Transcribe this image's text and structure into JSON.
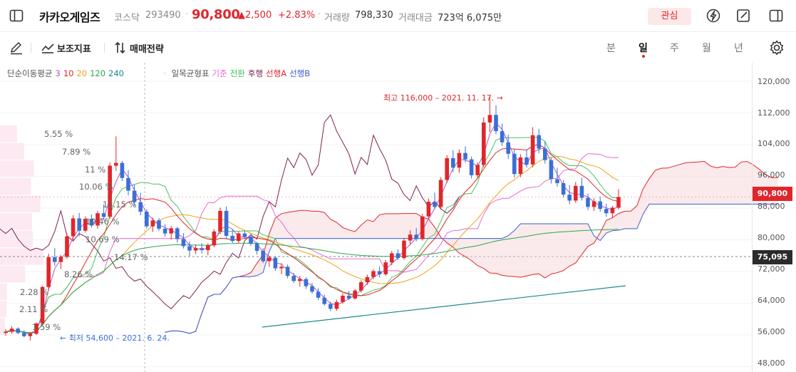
{
  "header": {
    "stock_name": "카카오게임즈",
    "market": "코스닥",
    "code": "293490",
    "separator": "·",
    "price": "90,800",
    "change": "▲2,500",
    "change_pct": "+2.83%",
    "volume_label": "거래량",
    "volume": "798,330",
    "amount_label": "거래대금",
    "amount": "723억 6,075만",
    "watch_label": "관심"
  },
  "toolbar": {
    "indicator_label": "보조지표",
    "trade_label": "매매전략",
    "periods": [
      "분",
      "일",
      "주",
      "월",
      "년"
    ],
    "active_period": "일"
  },
  "legend": {
    "ma_title": "단순이동평균",
    "ma_periods": [
      {
        "label": "3",
        "color": "#b455c4"
      },
      {
        "label": "10",
        "color": "#e0262b"
      },
      {
        "label": "20",
        "color": "#f0a21b"
      },
      {
        "label": "120",
        "color": "#2aa84a"
      },
      {
        "label": "240",
        "color": "#1a8a8a"
      }
    ],
    "ichimoku_title": "일목균형표",
    "ichimoku_lines": [
      {
        "label": "기준",
        "color": "#e76ad3"
      },
      {
        "label": "전환",
        "color": "#47c25c"
      },
      {
        "label": "후행",
        "color": "#7a2250"
      },
      {
        "label": "선행A",
        "color": "#e0262b"
      },
      {
        "label": "선행B",
        "color": "#3a5fd0"
      }
    ]
  },
  "annotations": {
    "high": "최고 116,000 – 2021. 11. 17. →",
    "low": "← 최저 54,600 – 2021. 6. 24."
  },
  "volume_profile_labels": [
    "5.55 %",
    "7.89 %",
    "11 %",
    "10.06 %",
    "13.15 %",
    "10.46 %",
    "10.69 %",
    "14.17 %",
    "8.26 %",
    "2.28 %",
    "2.11 %",
    "1.59 %"
  ],
  "y_axis": {
    "ticks": [
      "120,000",
      "112,000",
      "104,000",
      "96,000",
      "88,000",
      "80,000",
      "72,000",
      "64,000",
      "56,000",
      "48,000"
    ],
    "current_price": "90,800",
    "crosshair_price": "75,095"
  },
  "colors": {
    "up": "#e0262b",
    "down": "#3b6fd6",
    "accent": "#e0262b"
  },
  "chart_data": {
    "type": "candlestick",
    "ylim": [
      48000,
      123000
    ],
    "candles": [
      [
        56500,
        57500,
        55800,
        56800
      ],
      [
        56800,
        58200,
        56300,
        57600
      ],
      [
        57600,
        57900,
        56200,
        56500
      ],
      [
        56500,
        57200,
        55400,
        55700
      ],
      [
        55700,
        56600,
        54600,
        56300
      ],
      [
        56300,
        59200,
        56000,
        58900
      ],
      [
        58900,
        68400,
        58600,
        68100
      ],
      [
        68100,
        76500,
        67200,
        75600
      ],
      [
        75600,
        77900,
        73400,
        74400
      ],
      [
        74400,
        76200,
        72600,
        75700
      ],
      [
        75700,
        81500,
        75200,
        80900
      ],
      [
        80900,
        86200,
        79600,
        85400
      ],
      [
        85400,
        86800,
        80900,
        82300
      ],
      [
        82300,
        85900,
        81800,
        85300
      ],
      [
        85300,
        86400,
        83100,
        83600
      ],
      [
        83600,
        87300,
        82800,
        86700
      ],
      [
        86700,
        88900,
        84900,
        85800
      ],
      [
        85800,
        99500,
        85300,
        98700
      ],
      [
        98700,
        106100,
        97400,
        99400
      ],
      [
        99400,
        99900,
        94800,
        95600
      ],
      [
        95600,
        97600,
        91200,
        92400
      ],
      [
        92400,
        93900,
        88600,
        89500
      ],
      [
        89500,
        91900,
        86200,
        87100
      ],
      [
        87100,
        87700,
        82800,
        83400
      ],
      [
        83400,
        85600,
        82000,
        84900
      ],
      [
        84900,
        85500,
        82200,
        82800
      ],
      [
        82800,
        83900,
        80800,
        81600
      ],
      [
        81600,
        83500,
        80100,
        82900
      ],
      [
        82900,
        83300,
        79300,
        80200
      ],
      [
        80200,
        81700,
        77800,
        78400
      ],
      [
        78400,
        79600,
        75900,
        77300
      ],
      [
        77300,
        78800,
        76400,
        77900
      ],
      [
        77900,
        79200,
        76500,
        77400
      ],
      [
        77400,
        79100,
        76100,
        78600
      ],
      [
        78600,
        82700,
        78100,
        82100
      ],
      [
        82100,
        88100,
        81400,
        87300
      ],
      [
        87300,
        88400,
        80100,
        81000
      ],
      [
        81000,
        82500,
        79200,
        79700
      ],
      [
        79700,
        82100,
        79100,
        81600
      ],
      [
        81600,
        82400,
        80200,
        80800
      ],
      [
        80800,
        81600,
        78500,
        79000
      ],
      [
        79000,
        79500,
        76300,
        77200
      ],
      [
        77200,
        77900,
        74100,
        74600
      ],
      [
        74600,
        76000,
        73200,
        75500
      ],
      [
        75500,
        75900,
        72200,
        72800
      ],
      [
        72800,
        74100,
        71300,
        73200
      ],
      [
        73200,
        73800,
        70300,
        70900
      ],
      [
        70900,
        71700,
        69100,
        69600
      ],
      [
        69600,
        70900,
        68200,
        70100
      ],
      [
        70100,
        70600,
        67600,
        68300
      ],
      [
        68300,
        69100,
        66400,
        66900
      ],
      [
        66900,
        67800,
        64800,
        65400
      ],
      [
        65400,
        66200,
        63400,
        63800
      ],
      [
        63800,
        64400,
        62000,
        62600
      ],
      [
        62600,
        64900,
        62100,
        64300
      ],
      [
        64300,
        66500,
        63900,
        65900
      ],
      [
        65900,
        67100,
        64800,
        65200
      ],
      [
        65200,
        67600,
        64900,
        67200
      ],
      [
        67200,
        69800,
        66700,
        69300
      ],
      [
        69300,
        71200,
        68600,
        70600
      ],
      [
        70600,
        72600,
        70100,
        72100
      ],
      [
        72100,
        73300,
        70500,
        71300
      ],
      [
        71300,
        74900,
        70900,
        74300
      ],
      [
        74300,
        77200,
        73600,
        76600
      ],
      [
        76600,
        77600,
        74900,
        75400
      ],
      [
        75400,
        80500,
        75000,
        79800
      ],
      [
        79800,
        82400,
        78900,
        81300
      ],
      [
        81300,
        83000,
        79600,
        80200
      ],
      [
        80200,
        86500,
        79800,
        85900
      ],
      [
        85900,
        90400,
        85100,
        89600
      ],
      [
        89600,
        91900,
        87700,
        88300
      ],
      [
        88300,
        95800,
        87600,
        95100
      ],
      [
        95100,
        101400,
        94300,
        100600
      ],
      [
        100600,
        102600,
        97100,
        98200
      ],
      [
        98200,
        102800,
        96900,
        101900
      ],
      [
        101900,
        103600,
        99500,
        100300
      ],
      [
        100300,
        101000,
        95500,
        96300
      ],
      [
        96300,
        99500,
        95600,
        98900
      ],
      [
        98900,
        110900,
        98300,
        109600
      ],
      [
        109600,
        116000,
        107200,
        111500
      ],
      [
        111500,
        113900,
        106600,
        107400
      ],
      [
        107400,
        109300,
        103700,
        104600
      ],
      [
        104600,
        106500,
        100400,
        101700
      ],
      [
        101700,
        103000,
        95700,
        96600
      ],
      [
        96600,
        101600,
        95800,
        100800
      ],
      [
        100800,
        102600,
        98200,
        99000
      ],
      [
        99000,
        108400,
        98300,
        106400
      ],
      [
        106400,
        108000,
        101800,
        103000
      ],
      [
        103000,
        104900,
        99200,
        100100
      ],
      [
        100100,
        100800,
        94200,
        95300
      ],
      [
        95300,
        98200,
        93400,
        94300
      ],
      [
        94300,
        95100,
        90700,
        91400
      ],
      [
        91400,
        93800,
        89000,
        89900
      ],
      [
        89900,
        94600,
        89300,
        93600
      ],
      [
        93600,
        95700,
        89900,
        90600
      ],
      [
        90600,
        91700,
        87500,
        88300
      ],
      [
        88300,
        90500,
        87300,
        89700
      ],
      [
        89700,
        90900,
        87100,
        87800
      ],
      [
        87800,
        89100,
        85800,
        86700
      ],
      [
        86700,
        88600,
        85500,
        88100
      ],
      [
        88100,
        92800,
        87600,
        90800
      ]
    ]
  }
}
